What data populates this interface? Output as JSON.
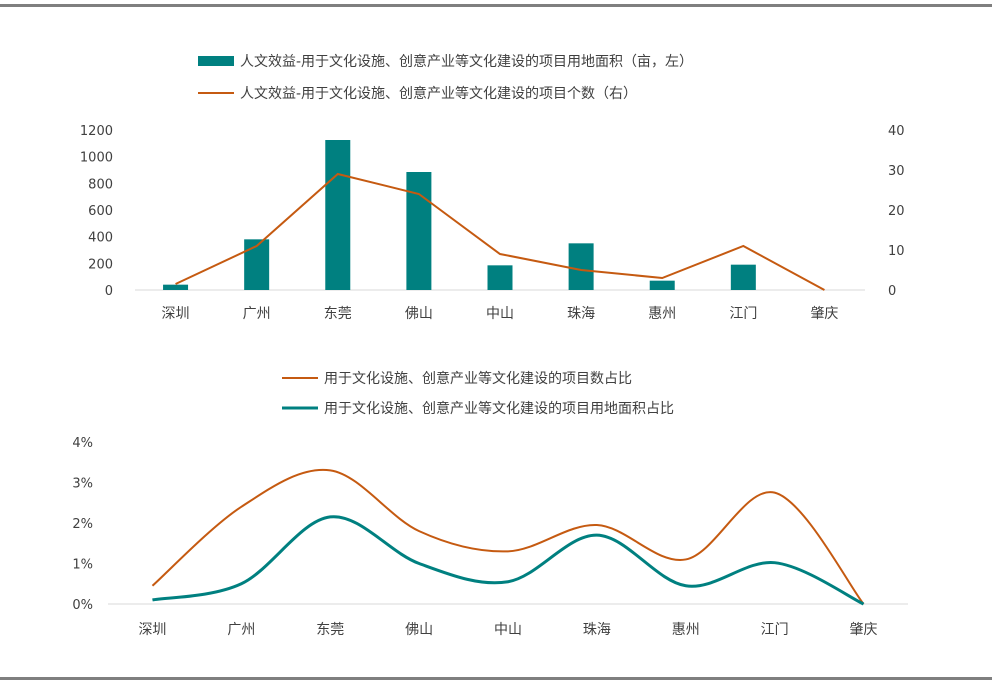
{
  "chart_data": [
    {
      "type": "bar",
      "categories": [
        "深圳",
        "广州",
        "东莞",
        "佛山",
        "中山",
        "珠海",
        "惠州",
        "江门",
        "肇庆"
      ],
      "series": [
        {
          "name": "人文效益-用于文化设施、创意产业等文化建设的项目用地面积（亩，左）",
          "kind": "bar",
          "axis": "left",
          "color": "#008080",
          "values": [
            40,
            380,
            1125,
            885,
            185,
            350,
            70,
            190,
            0
          ]
        },
        {
          "name": "人文效益-用于文化设施、创意产业等文化建设的项目个数（右）",
          "kind": "line",
          "axis": "right",
          "color": "#c55a11",
          "values": [
            1.5,
            11,
            29,
            24,
            9,
            5,
            3,
            11,
            0
          ]
        }
      ],
      "y_left": {
        "lim": [
          0,
          1200
        ],
        "ticks": [
          "0",
          "200",
          "400",
          "600",
          "800",
          "1000",
          "1200"
        ]
      },
      "y_right": {
        "lim": [
          0,
          40
        ],
        "ticks": [
          "0",
          "10",
          "20",
          "30",
          "40"
        ]
      },
      "legend": "top-center",
      "grid": false
    },
    {
      "type": "line",
      "smooth": true,
      "categories": [
        "深圳",
        "广州",
        "东莞",
        "佛山",
        "中山",
        "珠海",
        "惠州",
        "江门",
        "肇庆"
      ],
      "series": [
        {
          "name": "用于文化设施、创意产业等文化建设的项目数占比",
          "color": "#c55a11",
          "values": [
            0.45,
            2.4,
            3.3,
            1.8,
            1.3,
            1.95,
            1.1,
            2.75,
            0
          ]
        },
        {
          "name": "用于文化设施、创意产业等文化建设的项目用地面积占比",
          "color": "#008080",
          "values": [
            0.1,
            0.5,
            2.15,
            1.0,
            0.55,
            1.7,
            0.45,
            1.02,
            0
          ]
        }
      ],
      "y": {
        "lim": [
          0,
          4
        ],
        "ticks": [
          "0%",
          "1%",
          "2%",
          "3%",
          "4%"
        ]
      },
      "legend": "top-center",
      "grid": false
    }
  ]
}
